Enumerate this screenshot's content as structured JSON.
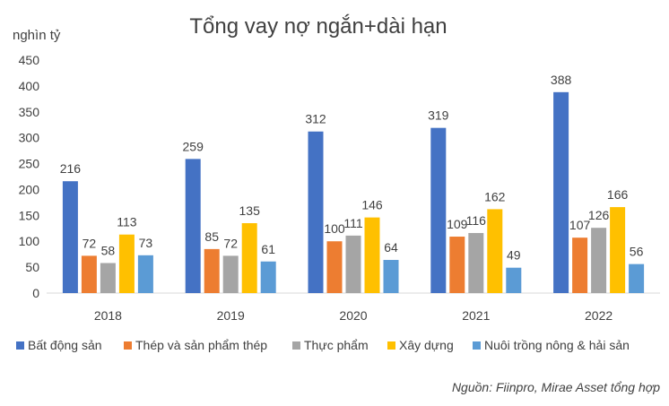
{
  "chart_data": {
    "type": "bar",
    "title": "Tổng vay nợ ngắn+dài hạn",
    "unit_label": "nghìn tỷ",
    "categories": [
      "2018",
      "2019",
      "2020",
      "2021",
      "2022"
    ],
    "ylim": [
      0,
      450
    ],
    "yticks": [
      "0",
      "50",
      "100",
      "150",
      "200",
      "250",
      "300",
      "350",
      "400",
      "450"
    ],
    "grid": false,
    "legend_position": "bottom",
    "series": [
      {
        "name": "Bất động sản",
        "color": "#4472C4",
        "values": [
          216,
          259,
          312,
          319,
          388
        ]
      },
      {
        "name": "Thép và sản phẩm thép",
        "color": "#ED7D31",
        "values": [
          72,
          85,
          100,
          109,
          107
        ]
      },
      {
        "name": "Thực phẩm",
        "color": "#A5A5A5",
        "values": [
          58,
          72,
          111,
          116,
          126
        ]
      },
      {
        "name": "Xây dựng",
        "color": "#FFC000",
        "values": [
          113,
          135,
          146,
          162,
          166
        ]
      },
      {
        "name": "Nuôi trồng nông & hải sản",
        "color": "#5B9BD5",
        "values": [
          73,
          61,
          64,
          49,
          56
        ]
      }
    ],
    "source": "Nguồn: Fiinpro, Mirae Asset tổng hợp"
  }
}
